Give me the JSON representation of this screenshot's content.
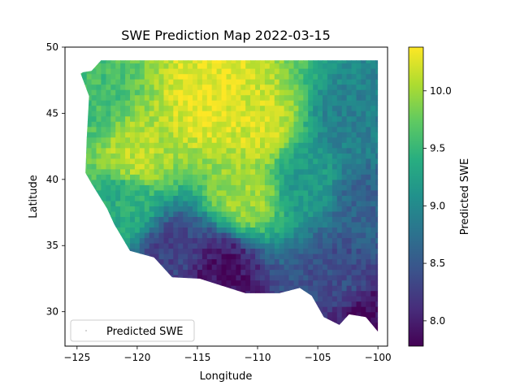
{
  "chart_data": {
    "type": "heatmap",
    "title": "SWE Prediction Map 2022-03-15",
    "xlabel": "Longitude",
    "ylabel": "Latitude",
    "xlim": [
      -126,
      -99.2
    ],
    "ylim": [
      27.4,
      50
    ],
    "xticks": [
      -125,
      -120,
      -115,
      -110,
      -105,
      -100
    ],
    "yticks": [
      30,
      35,
      40,
      45,
      50
    ],
    "xtick_labels": [
      "−125",
      "−120",
      "−115",
      "−110",
      "−105",
      "−100"
    ],
    "ytick_labels": [
      "30",
      "35",
      "40",
      "45",
      "50"
    ],
    "legend": {
      "label": "Predicted SWE",
      "placement": "lower-left"
    },
    "colorbar": {
      "label": "Predicted SWE",
      "range": [
        7.78,
        10.38
      ],
      "ticks": [
        8.0,
        8.5,
        9.0,
        9.5,
        10.0
      ],
      "tick_labels": [
        "8.0",
        "8.5",
        "9.0",
        "9.5",
        "10.0"
      ],
      "colormap": "viridis"
    },
    "region": {
      "description_points": [
        [
          -124.5,
          48.1
        ],
        [
          -123.8,
          48.2
        ],
        [
          -123.0,
          49.0
        ],
        [
          -100.0,
          49.0
        ],
        [
          -100.0,
          28.5
        ],
        [
          -101.0,
          29.6
        ],
        [
          -102.4,
          29.8
        ],
        [
          -103.2,
          29.0
        ],
        [
          -104.5,
          29.6
        ],
        [
          -105.5,
          31.2
        ],
        [
          -106.5,
          31.8
        ],
        [
          -108.2,
          31.4
        ],
        [
          -111.0,
          31.4
        ],
        [
          -114.8,
          32.5
        ],
        [
          -117.1,
          32.6
        ],
        [
          -118.6,
          34.1
        ],
        [
          -120.6,
          34.6
        ],
        [
          -121.9,
          36.6
        ],
        [
          -122.5,
          37.8
        ],
        [
          -123.8,
          39.7
        ],
        [
          -124.3,
          40.5
        ],
        [
          -124.2,
          43.0
        ],
        [
          -124.0,
          46.3
        ],
        [
          -124.7,
          48.0
        ]
      ],
      "value_zones": [
        {
          "lon": -110,
          "lat": 44,
          "value": 10.2
        },
        {
          "lon": -114,
          "lat": 46,
          "value": 10.3
        },
        {
          "lon": -120,
          "lat": 42,
          "value": 10.1
        },
        {
          "lon": -111,
          "lat": 39,
          "value": 10.0
        },
        {
          "lon": -106,
          "lat": 40,
          "value": 9.2
        },
        {
          "lon": -102,
          "lat": 44,
          "value": 8.9
        },
        {
          "lon": -101,
          "lat": 38,
          "value": 8.6
        },
        {
          "lon": -103,
          "lat": 33,
          "value": 8.4
        },
        {
          "lon": -113,
          "lat": 33,
          "value": 7.9
        },
        {
          "lon": -117,
          "lat": 34.5,
          "value": 8.3
        },
        {
          "lon": -121,
          "lat": 38,
          "value": 9.4
        },
        {
          "lon": -100.5,
          "lat": 29.5,
          "value": 7.9
        },
        {
          "lon": -123.5,
          "lat": 46,
          "value": 9.6
        }
      ]
    }
  }
}
